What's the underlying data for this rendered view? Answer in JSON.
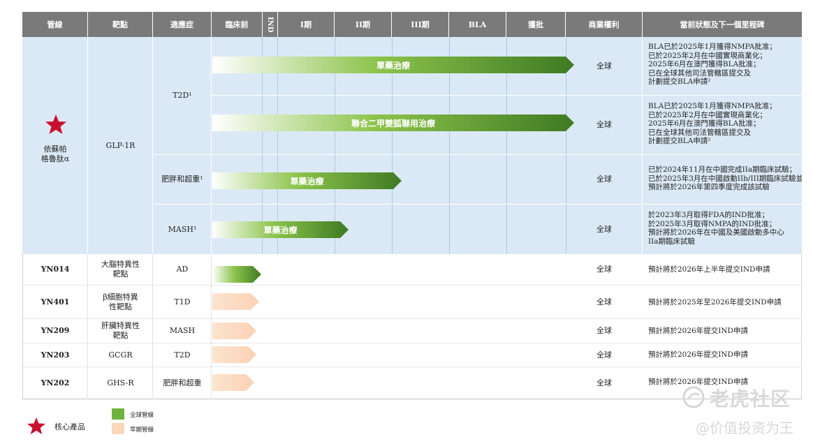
{
  "headers": [
    "管線",
    "靶點",
    "適應症",
    "臨床前",
    "IND",
    "I期",
    "II期",
    "III期",
    "BLA",
    "獲批",
    "商業權利",
    "當前狀態及下一個里程碑"
  ],
  "core": {
    "product_name": "依蘇帕\n格魯肽α",
    "target": "GLP-1R",
    "rows": [
      {
        "indication": "T2D¹",
        "arrow_label": "單藥治療",
        "rights": "全球",
        "status": "BLA已於2025年1月獲得NMPA批准；\n已於2025年2月在中國實現商業化；\n2025年6月在澳門獲得BLA批准；\n已在全球其他司法管轄區提交及\n計劃提交BLA申請²"
      },
      {
        "indication": "",
        "arrow_label": "聯合二甲雙胍聯用治療",
        "rights": "全球",
        "status": "BLA已於2025年1月獲得NMPA批准；\n已於2025年2月在中國實現商業化；\n2025年6月在澳門獲得BLA批准；\n已在全球其他司法管轄區提交及\n計劃提交BLA申請²"
      },
      {
        "indication": "肥胖和超重¹",
        "arrow_label": "單藥治療",
        "rights": "全球",
        "status": "已於2024年11月在中國完成IIa期臨床試驗；\n已於2025年3月在中國啟動IIb/III期臨床試驗並\n預計將於2026年第四季度完成該試驗"
      },
      {
        "indication": "MASH¹",
        "arrow_label": "單藥治療",
        "rights": "全球",
        "status": "於2023年3月取得FDA的IND批准；\n於2025年3月取得NMPA的IND批准；\n預計將於2026年在中國及美國啟動多中心\nIIa期臨床試驗"
      }
    ]
  },
  "other_rows": [
    {
      "pipeline": "YN014",
      "target": "大腦特異性\n靶點",
      "indication": "AD",
      "rights": "全球",
      "status": "預計將於2026年上半年提交IND申請",
      "kind": "global"
    },
    {
      "pipeline": "YN401",
      "target": "β細胞特異\n性靶點",
      "indication": "T1D",
      "rights": "全球",
      "status": "預計將於2025年至2026年提交IND申請",
      "kind": "early"
    },
    {
      "pipeline": "YN209",
      "target": "肝臟特異性\n靶點",
      "indication": "MASH",
      "rights": "全球",
      "status": "預計將於2026年提交IND申請",
      "kind": "early"
    },
    {
      "pipeline": "YN203",
      "target": "GCGR",
      "indication": "T2D",
      "rights": "全球",
      "status": "預計將於2026年提交IND申請",
      "kind": "early"
    },
    {
      "pipeline": "YN202",
      "target": "GHS-R",
      "indication": "肥胖和超重",
      "rights": "全球",
      "status": "預計將於2026年提交IND申請",
      "kind": "early"
    }
  ],
  "legend": {
    "core_label": "核心產品",
    "global_label": "全球管線",
    "early_label": "早期管線"
  },
  "watermark": {
    "brand": "老虎社区",
    "handle": "@价值投资为王"
  },
  "colors": {
    "header_gray": "#7a7a7a",
    "core_bg": "#dbe9f6",
    "global_green": "#6fb33c",
    "early_peach": "#fbd6bb",
    "star_red": "#c8102e"
  }
}
